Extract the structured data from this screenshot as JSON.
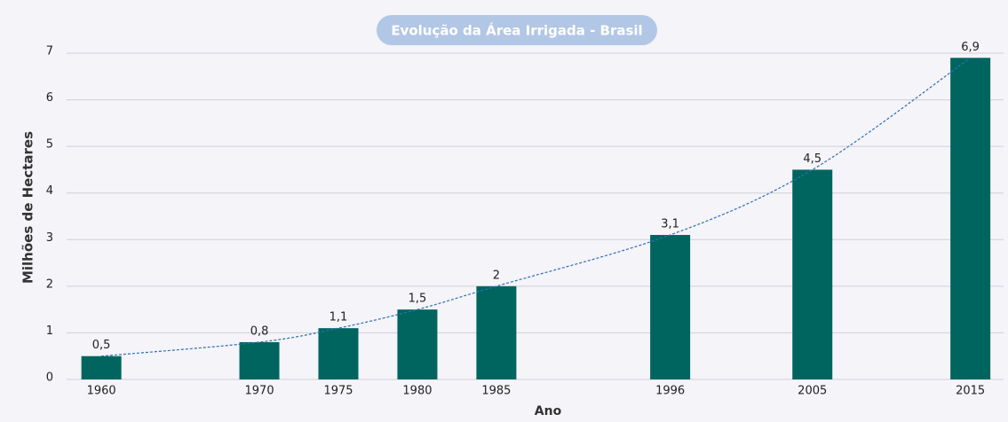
{
  "chart_data": {
    "type": "bar",
    "title": "Evolução da Área Irrigada - Brasil",
    "x_label": "Ano",
    "y_label": "Milhões de Hectares",
    "x": [
      1960,
      1970,
      1975,
      1980,
      1985,
      1996,
      2005,
      2015
    ],
    "values": [
      0.5,
      0.8,
      1.1,
      1.5,
      2,
      3.1,
      4.5,
      6.9
    ],
    "value_labels": [
      "0,5",
      "0,8",
      "1,1",
      "1,5",
      "2",
      "3,1",
      "4,5",
      "6,9"
    ],
    "color": "#00655f",
    "trend_color": "#2e6fb5",
    "xlim": [
      1957.8,
      2017.1
    ],
    "xticks": [
      1960,
      1970,
      1975,
      1980,
      1985,
      1996,
      2005,
      2015
    ],
    "ylim": [
      0,
      7
    ],
    "yticks": [
      0,
      1,
      2,
      3,
      4,
      5,
      6,
      7
    ],
    "grid": true
  }
}
